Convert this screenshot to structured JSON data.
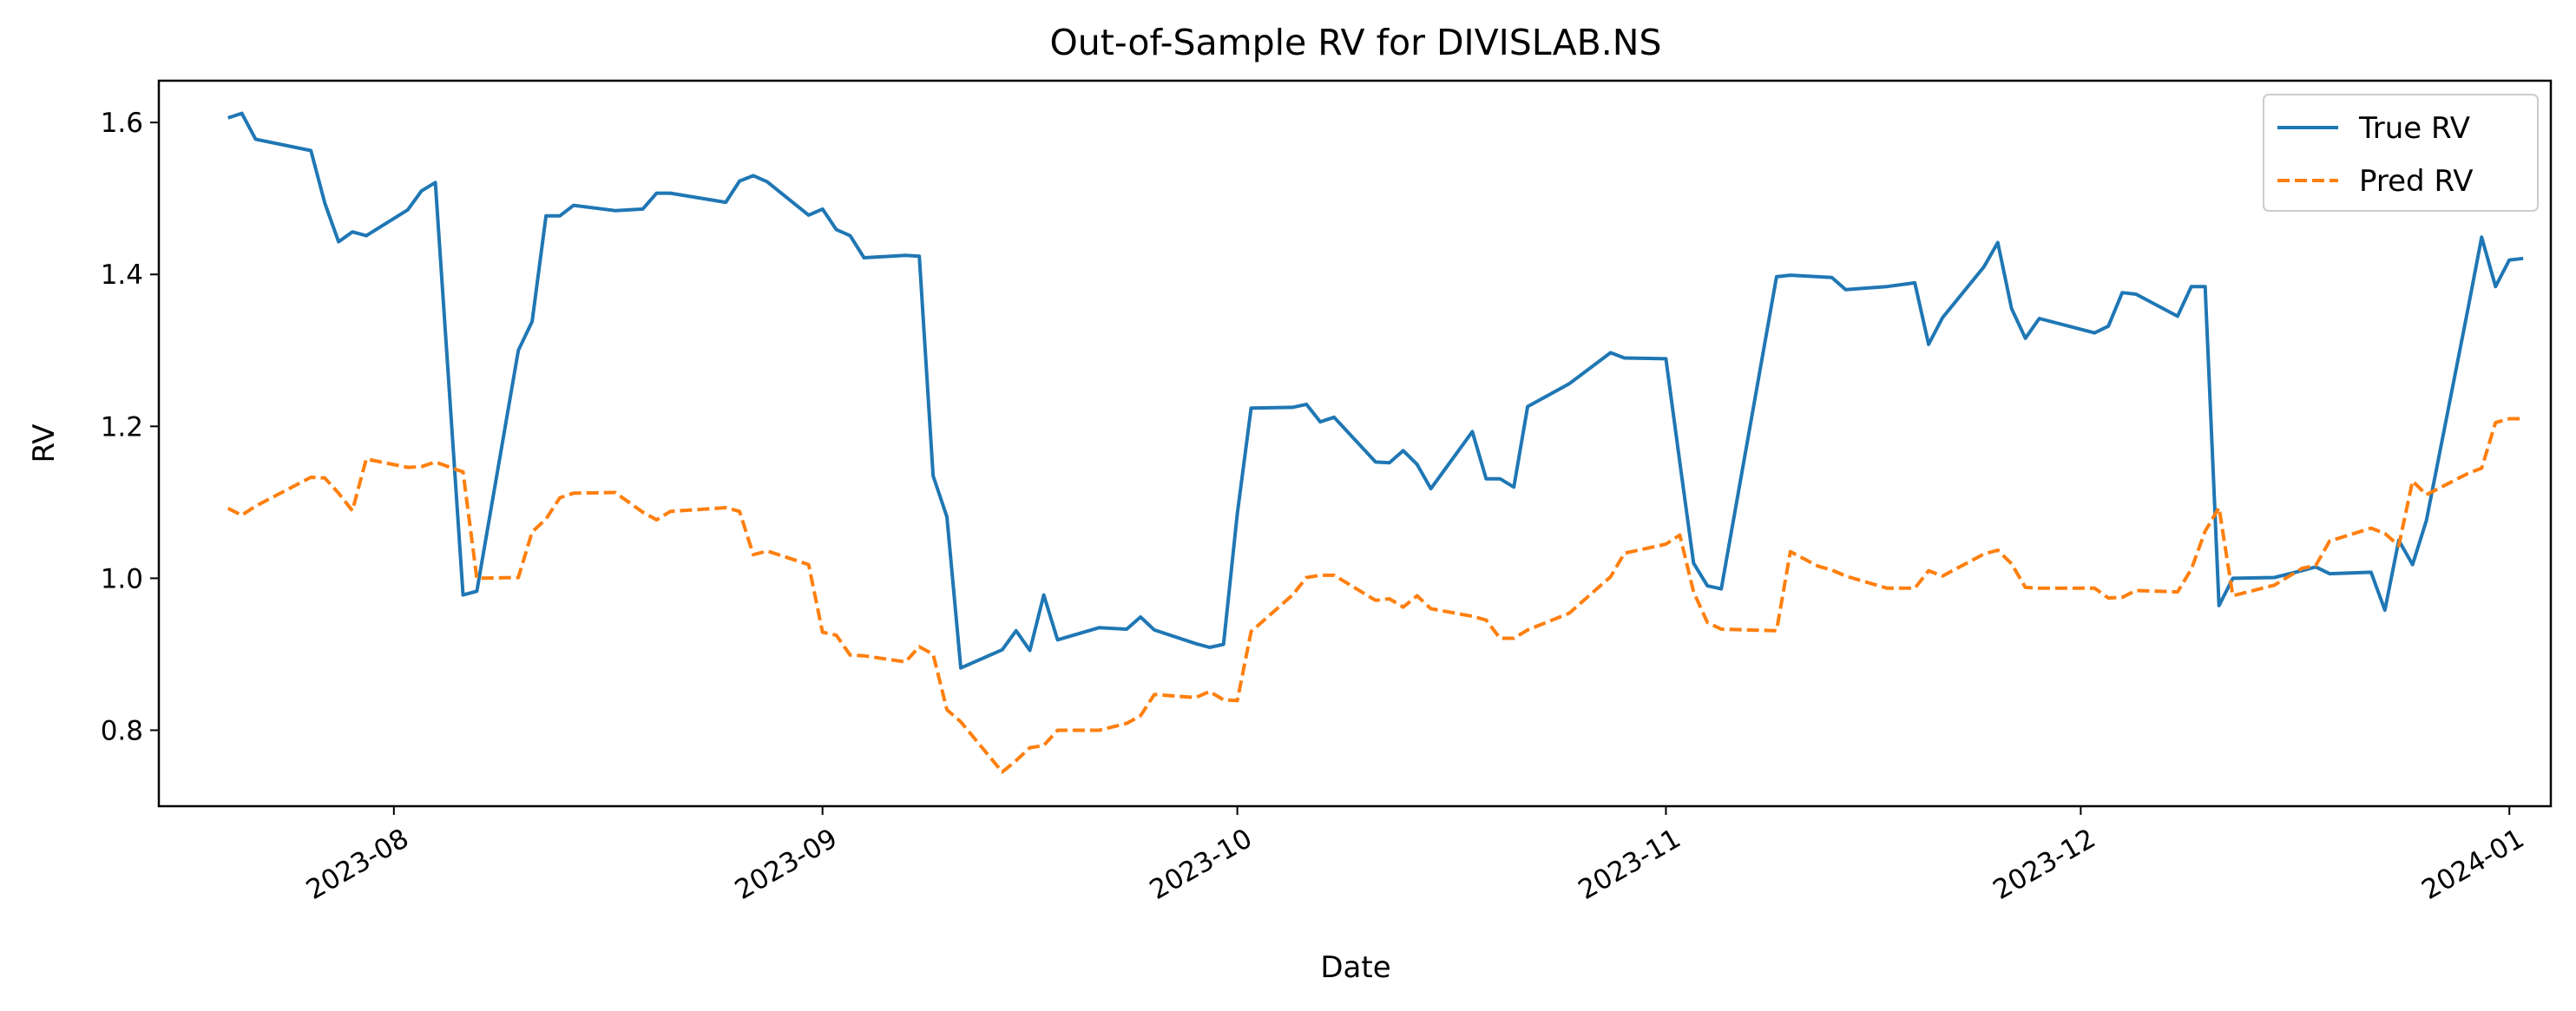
{
  "chart_data": {
    "type": "line",
    "title": "Out-of-Sample RV for DIVISLAB.NS",
    "xlabel": "Date",
    "ylabel": "RV",
    "x_type": "date",
    "xlim": [
      "2023-07-15",
      "2024-01-04"
    ],
    "ylim": [
      0.7,
      1.655
    ],
    "x_ticks": [
      {
        "date": "2023-08-01",
        "label": "2023-08"
      },
      {
        "date": "2023-09-01",
        "label": "2023-09"
      },
      {
        "date": "2023-10-01",
        "label": "2023-10"
      },
      {
        "date": "2023-11-01",
        "label": "2023-11"
      },
      {
        "date": "2023-12-01",
        "label": "2023-12"
      },
      {
        "date": "2024-01-01",
        "label": "2024-01"
      }
    ],
    "y_ticks": [
      {
        "value": 0.8,
        "label": "0.8"
      },
      {
        "value": 1.0,
        "label": "1.0"
      },
      {
        "value": 1.2,
        "label": "1.2"
      },
      {
        "value": 1.4,
        "label": "1.4"
      },
      {
        "value": 1.6,
        "label": "1.6"
      }
    ],
    "grid": false,
    "legend_position": "top-right",
    "series": [
      {
        "name": "True RV",
        "color": "#1f77b4",
        "style": "solid",
        "points": [
          [
            "2023-07-20",
            1.606
          ],
          [
            "2023-07-21",
            1.612
          ],
          [
            "2023-07-22",
            1.578
          ],
          [
            "2023-07-26",
            1.563
          ],
          [
            "2023-07-27",
            1.494
          ],
          [
            "2023-07-28",
            1.443
          ],
          [
            "2023-07-29",
            1.456
          ],
          [
            "2023-07-30",
            1.451
          ],
          [
            "2023-08-02",
            1.485
          ],
          [
            "2023-08-03",
            1.51
          ],
          [
            "2023-08-04",
            1.521
          ],
          [
            "2023-08-06",
            0.978
          ],
          [
            "2023-08-07",
            0.983
          ],
          [
            "2023-08-10",
            1.3
          ],
          [
            "2023-08-11",
            1.338
          ],
          [
            "2023-08-12",
            1.477
          ],
          [
            "2023-08-13",
            1.477
          ],
          [
            "2023-08-14",
            1.491
          ],
          [
            "2023-08-17",
            1.484
          ],
          [
            "2023-08-19",
            1.486
          ],
          [
            "2023-08-20",
            1.507
          ],
          [
            "2023-08-21",
            1.507
          ],
          [
            "2023-08-25",
            1.495
          ],
          [
            "2023-08-26",
            1.523
          ],
          [
            "2023-08-27",
            1.53
          ],
          [
            "2023-08-28",
            1.522
          ],
          [
            "2023-08-31",
            1.478
          ],
          [
            "2023-09-01",
            1.486
          ],
          [
            "2023-09-02",
            1.459
          ],
          [
            "2023-09-03",
            1.451
          ],
          [
            "2023-09-04",
            1.422
          ],
          [
            "2023-09-07",
            1.425
          ],
          [
            "2023-09-08",
            1.424
          ],
          [
            "2023-09-09",
            1.135
          ],
          [
            "2023-09-10",
            1.081
          ],
          [
            "2023-09-11",
            0.882
          ],
          [
            "2023-09-14",
            0.906
          ],
          [
            "2023-09-15",
            0.931
          ],
          [
            "2023-09-16",
            0.905
          ],
          [
            "2023-09-17",
            0.978
          ],
          [
            "2023-09-18",
            0.919
          ],
          [
            "2023-09-21",
            0.935
          ],
          [
            "2023-09-23",
            0.933
          ],
          [
            "2023-09-24",
            0.949
          ],
          [
            "2023-09-25",
            0.932
          ],
          [
            "2023-09-28",
            0.914
          ],
          [
            "2023-09-29",
            0.909
          ],
          [
            "2023-09-30",
            0.913
          ],
          [
            "2023-10-01",
            1.085
          ],
          [
            "2023-10-02",
            1.224
          ],
          [
            "2023-10-05",
            1.225
          ],
          [
            "2023-10-06",
            1.229
          ],
          [
            "2023-10-07",
            1.206
          ],
          [
            "2023-10-08",
            1.212
          ],
          [
            "2023-10-11",
            1.153
          ],
          [
            "2023-10-12",
            1.152
          ],
          [
            "2023-10-13",
            1.168
          ],
          [
            "2023-10-14",
            1.15
          ],
          [
            "2023-10-15",
            1.118
          ],
          [
            "2023-10-18",
            1.193
          ],
          [
            "2023-10-19",
            1.131
          ],
          [
            "2023-10-20",
            1.131
          ],
          [
            "2023-10-21",
            1.12
          ],
          [
            "2023-10-22",
            1.226
          ],
          [
            "2023-10-25",
            1.256
          ],
          [
            "2023-10-28",
            1.297
          ],
          [
            "2023-10-29",
            1.29
          ],
          [
            "2023-11-01",
            1.289
          ],
          [
            "2023-11-02",
            1.153
          ],
          [
            "2023-11-03",
            1.02
          ],
          [
            "2023-11-04",
            0.99
          ],
          [
            "2023-11-05",
            0.986
          ],
          [
            "2023-11-09",
            1.397
          ],
          [
            "2023-11-10",
            1.399
          ],
          [
            "2023-11-12",
            1.397
          ],
          [
            "2023-11-13",
            1.396
          ],
          [
            "2023-11-14",
            1.38
          ],
          [
            "2023-11-17",
            1.384
          ],
          [
            "2023-11-19",
            1.389
          ],
          [
            "2023-11-20",
            1.308
          ],
          [
            "2023-11-21",
            1.343
          ],
          [
            "2023-11-24",
            1.41
          ],
          [
            "2023-11-25",
            1.442
          ],
          [
            "2023-11-26",
            1.355
          ],
          [
            "2023-11-27",
            1.316
          ],
          [
            "2023-11-28",
            1.342
          ],
          [
            "2023-12-02",
            1.323
          ],
          [
            "2023-12-03",
            1.332
          ],
          [
            "2023-12-04",
            1.376
          ],
          [
            "2023-12-05",
            1.374
          ],
          [
            "2023-12-08",
            1.345
          ],
          [
            "2023-12-09",
            1.384
          ],
          [
            "2023-12-10",
            1.384
          ],
          [
            "2023-12-11",
            0.964
          ],
          [
            "2023-12-12",
            1.0
          ],
          [
            "2023-12-15",
            1.001
          ],
          [
            "2023-12-17",
            1.01
          ],
          [
            "2023-12-18",
            1.015
          ],
          [
            "2023-12-19",
            1.006
          ],
          [
            "2023-12-22",
            1.008
          ],
          [
            "2023-12-23",
            0.958
          ],
          [
            "2023-12-24",
            1.05
          ],
          [
            "2023-12-25",
            1.018
          ],
          [
            "2023-12-26",
            1.076
          ],
          [
            "2023-12-29",
            1.354
          ],
          [
            "2023-12-30",
            1.449
          ],
          [
            "2023-12-31",
            1.384
          ],
          [
            "2024-01-01",
            1.419
          ],
          [
            "2024-01-02",
            1.421
          ]
        ]
      },
      {
        "name": "Pred RV",
        "color": "#ff7f0e",
        "style": "dashed",
        "points": [
          [
            "2023-07-20",
            1.092
          ],
          [
            "2023-07-21",
            1.083
          ],
          [
            "2023-07-22",
            1.095
          ],
          [
            "2023-07-26",
            1.133
          ],
          [
            "2023-07-27",
            1.132
          ],
          [
            "2023-07-28",
            1.112
          ],
          [
            "2023-07-29",
            1.089
          ],
          [
            "2023-07-30",
            1.157
          ],
          [
            "2023-08-02",
            1.146
          ],
          [
            "2023-08-03",
            1.147
          ],
          [
            "2023-08-04",
            1.153
          ],
          [
            "2023-08-06",
            1.14
          ],
          [
            "2023-08-07",
            1.0
          ],
          [
            "2023-08-10",
            1.001
          ],
          [
            "2023-08-11",
            1.061
          ],
          [
            "2023-08-12",
            1.078
          ],
          [
            "2023-08-13",
            1.106
          ],
          [
            "2023-08-14",
            1.112
          ],
          [
            "2023-08-17",
            1.113
          ],
          [
            "2023-08-19",
            1.087
          ],
          [
            "2023-08-20",
            1.077
          ],
          [
            "2023-08-21",
            1.088
          ],
          [
            "2023-08-25",
            1.093
          ],
          [
            "2023-08-26",
            1.088
          ],
          [
            "2023-08-27",
            1.031
          ],
          [
            "2023-08-28",
            1.036
          ],
          [
            "2023-08-31",
            1.018
          ],
          [
            "2023-09-01",
            0.929
          ],
          [
            "2023-09-02",
            0.925
          ],
          [
            "2023-09-03",
            0.899
          ],
          [
            "2023-09-04",
            0.898
          ],
          [
            "2023-09-07",
            0.89
          ],
          [
            "2023-09-08",
            0.91
          ],
          [
            "2023-09-09",
            0.9
          ],
          [
            "2023-09-10",
            0.827
          ],
          [
            "2023-09-11",
            0.811
          ],
          [
            "2023-09-14",
            0.745
          ],
          [
            "2023-09-15",
            0.76
          ],
          [
            "2023-09-16",
            0.777
          ],
          [
            "2023-09-17",
            0.78
          ],
          [
            "2023-09-18",
            0.8
          ],
          [
            "2023-09-21",
            0.8
          ],
          [
            "2023-09-23",
            0.809
          ],
          [
            "2023-09-24",
            0.819
          ],
          [
            "2023-09-25",
            0.847
          ],
          [
            "2023-09-28",
            0.843
          ],
          [
            "2023-09-29",
            0.851
          ],
          [
            "2023-09-30",
            0.84
          ],
          [
            "2023-10-01",
            0.839
          ],
          [
            "2023-10-02",
            0.93
          ],
          [
            "2023-10-05",
            0.978
          ],
          [
            "2023-10-06",
            1.001
          ],
          [
            "2023-10-07",
            1.004
          ],
          [
            "2023-10-08",
            1.004
          ],
          [
            "2023-10-11",
            0.971
          ],
          [
            "2023-10-12",
            0.973
          ],
          [
            "2023-10-13",
            0.962
          ],
          [
            "2023-10-14",
            0.977
          ],
          [
            "2023-10-15",
            0.96
          ],
          [
            "2023-10-18",
            0.95
          ],
          [
            "2023-10-19",
            0.945
          ],
          [
            "2023-10-20",
            0.921
          ],
          [
            "2023-10-21",
            0.921
          ],
          [
            "2023-10-22",
            0.932
          ],
          [
            "2023-10-25",
            0.954
          ],
          [
            "2023-10-28",
            1.002
          ],
          [
            "2023-10-29",
            1.033
          ],
          [
            "2023-11-01",
            1.045
          ],
          [
            "2023-11-02",
            1.057
          ],
          [
            "2023-11-03",
            0.982
          ],
          [
            "2023-11-04",
            0.942
          ],
          [
            "2023-11-05",
            0.933
          ],
          [
            "2023-11-09",
            0.931
          ],
          [
            "2023-11-10",
            1.035
          ],
          [
            "2023-11-12",
            1.016
          ],
          [
            "2023-11-13",
            1.011
          ],
          [
            "2023-11-14",
            1.003
          ],
          [
            "2023-11-17",
            0.987
          ],
          [
            "2023-11-19",
            0.987
          ],
          [
            "2023-11-20",
            1.01
          ],
          [
            "2023-11-21",
            1.003
          ],
          [
            "2023-11-24",
            1.032
          ],
          [
            "2023-11-25",
            1.037
          ],
          [
            "2023-11-26",
            1.019
          ],
          [
            "2023-11-27",
            0.988
          ],
          [
            "2023-11-28",
            0.987
          ],
          [
            "2023-12-02",
            0.987
          ],
          [
            "2023-12-03",
            0.974
          ],
          [
            "2023-12-04",
            0.975
          ],
          [
            "2023-12-05",
            0.984
          ],
          [
            "2023-12-08",
            0.982
          ],
          [
            "2023-12-09",
            1.012
          ],
          [
            "2023-12-10",
            1.062
          ],
          [
            "2023-12-11",
            1.093
          ],
          [
            "2023-12-12",
            0.977
          ],
          [
            "2023-12-15",
            0.991
          ],
          [
            "2023-12-17",
            1.013
          ],
          [
            "2023-12-18",
            1.017
          ],
          [
            "2023-12-19",
            1.049
          ],
          [
            "2023-12-22",
            1.066
          ],
          [
            "2023-12-23",
            1.059
          ],
          [
            "2023-12-24",
            1.043
          ],
          [
            "2023-12-25",
            1.128
          ],
          [
            "2023-12-26",
            1.11
          ],
          [
            "2023-12-29",
            1.138
          ],
          [
            "2023-12-30",
            1.145
          ],
          [
            "2023-12-31",
            1.205
          ],
          [
            "2024-01-01",
            1.21
          ],
          [
            "2024-01-02",
            1.21
          ]
        ]
      }
    ]
  }
}
